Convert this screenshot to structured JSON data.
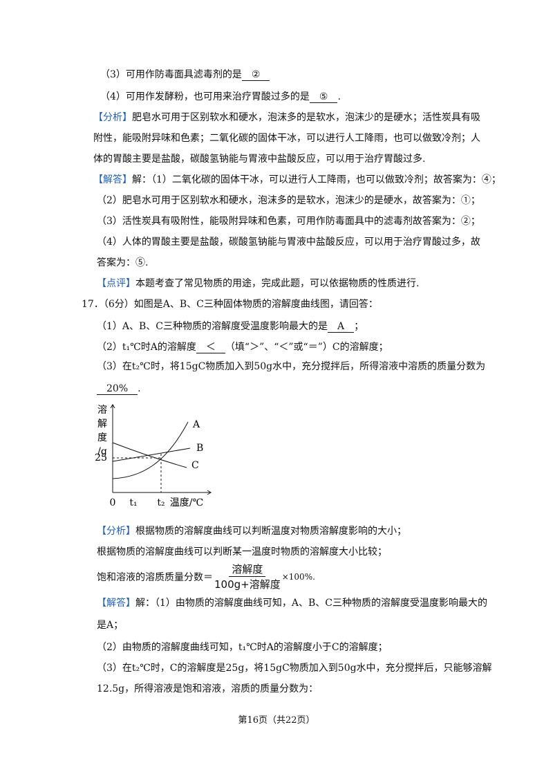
{
  "lines_top": [
    {
      "text": "（3）可用作防毒面具滤毒剂的是",
      "answer": "②"
    },
    {
      "text": "（4）可用作发酵粉，也可用来治疗胃酸过多的是",
      "answer": "⑤",
      "after": "."
    },
    {
      "label": "【分析】",
      "text": "肥皂水可用于区别软水和硬水，泡沫多的是软水，泡沫少的是硬水；活性炭具有吸"
    },
    {
      "text": "附性，能吸附异味和色素；二氧化碳的固体干冰，可以进行人工降雨，也可以做致冷剂；人"
    },
    {
      "text": "体的胃酸主要是盐酸，碳酸氢钠能与胃液中盐酸反应，可以用于治疗胃酸过多."
    },
    {
      "label": "【解答】",
      "text": "解：（1）二氧化碳的固体干冰，可以进行人工降雨，也可以做致冷剂；故答案为：④；"
    },
    {
      "text": "（2）肥皂水可用于区别软水和硬水，泡沫多的是软水，泡沫少的是硬水，故答案为：①；"
    },
    {
      "text": "（3）活性炭具有吸附性，能吸附异味和色素，可用作防毒面具中的滤毒剂故答案为：②；"
    },
    {
      "text": "（4）人体的胃酸主要是盐酸，碳酸氢钠能与胃液中盐酸反应，可以用于治疗胃酸过多，故"
    },
    {
      "text": "答案为：⑤."
    },
    {
      "label": "【点评】",
      "text": "本题考查了常见物质的用途，完成此题，可以依据物质的性质进行."
    },
    {
      "text": "17．（6分）如图是A、B、C三种固体物质的溶解度曲线图，请回答："
    },
    {
      "text": "（1）A、B、C三种物质的溶解度受温度影响最大的是",
      "answer": "A",
      "after": "；"
    },
    {
      "text": "（2）t₁℃时A的溶解度",
      "answer": "＜",
      "after": "（填“＞”、“＜”或“＝”）C的溶解度；"
    },
    {
      "text": "（3）在t₂℃时，将15gC物质加入到50g水中，充分搅拌后，所得溶液中溶质的质量分数为"
    },
    {
      "answer": "20%",
      "after": "."
    }
  ],
  "figure": {
    "y_label": [
      "溶",
      "解",
      "度",
      "/g"
    ],
    "y_tick": "25",
    "curves": [
      "A",
      "B",
      "C"
    ],
    "x_labels": [
      "0",
      "t₁",
      "t₂",
      "温度/℃"
    ]
  },
  "lines_bottom": [
    {
      "label": "【分析】",
      "text": "根据物质的溶解度曲线可以判断温度对物质溶解度影响的大小；"
    },
    {
      "text": "根据物质的溶解度曲线可以判断某一温度时物质的溶解度大小比较；"
    }
  ],
  "formula": {
    "text": "饱和溶液的溶质质量分数＝",
    "numerator": "溶解度",
    "denominator": "100g+溶解度",
    "after": "×100%."
  },
  "lines_end": [
    {
      "label": "【解答】",
      "text": "解：（1）由物质的溶解度曲线可知，A、B、C三种物质的溶解度受温度影响最大的"
    },
    {
      "text": "是A；"
    },
    {
      "text": "（2）由物质的溶解度曲线可知，t₁℃时A的溶解度小于C的溶解度；"
    },
    {
      "text": "（3）在t₂℃时，C的溶解度是25g，将15gC物质加入到50g水中，充分搅拌后，只能够溶解"
    },
    {
      "text": "12.5g，所得溶液是饱和溶液，溶质的质量分数为："
    }
  ],
  "footer": "第16页（共22页）"
}
